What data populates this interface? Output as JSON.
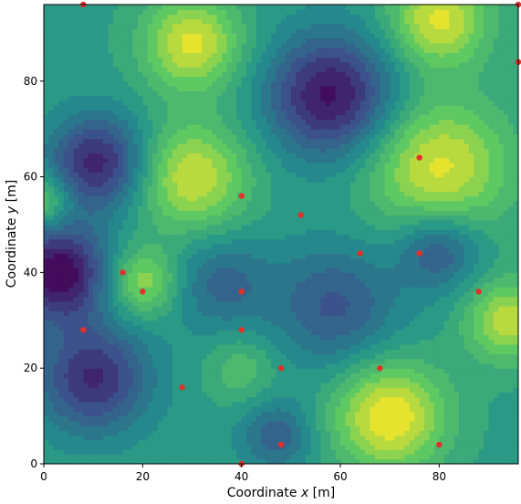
{
  "chart_data": {
    "type": "scatter",
    "subtype": "filled-contour-with-scatter",
    "xlabel_prefix": "Coordinate ",
    "xlabel_var": "x",
    "xlabel_suffix": " [m]",
    "ylabel_prefix": "Coordinate ",
    "ylabel_var": "y",
    "ylabel_suffix": " [m]",
    "xlim": [
      0,
      96
    ],
    "ylim": [
      0,
      96
    ],
    "xticks": [
      0,
      20,
      40,
      60,
      80
    ],
    "yticks": [
      0,
      20,
      40,
      60,
      80
    ],
    "grid": false,
    "colormap": [
      "#440154",
      "#3b528b",
      "#21918c",
      "#5ec962",
      "#fde725"
    ],
    "contour_levels": 14,
    "marker_color": "#e0302a",
    "field_base": 0.55,
    "field_features": [
      {
        "x": 3,
        "y": 40,
        "amp": -0.55,
        "r": 7
      },
      {
        "x": 58,
        "y": 77,
        "amp": -0.5,
        "r": 9
      },
      {
        "x": 11,
        "y": 63,
        "amp": -0.45,
        "r": 7
      },
      {
        "x": 10,
        "y": 18,
        "amp": -0.42,
        "r": 8
      },
      {
        "x": 59,
        "y": 33,
        "amp": -0.28,
        "r": 9
      },
      {
        "x": 36,
        "y": 38,
        "amp": -0.22,
        "r": 7
      },
      {
        "x": 80,
        "y": 45,
        "amp": -0.3,
        "r": 6
      },
      {
        "x": 47,
        "y": 6,
        "amp": -0.25,
        "r": 5
      },
      {
        "x": 30,
        "y": 88,
        "amp": 0.4,
        "r": 7
      },
      {
        "x": 80,
        "y": 93,
        "amp": 0.4,
        "r": 7
      },
      {
        "x": 30,
        "y": 60,
        "amp": 0.38,
        "r": 8
      },
      {
        "x": 80,
        "y": 62,
        "amp": 0.4,
        "r": 10
      },
      {
        "x": 94,
        "y": 30,
        "amp": 0.35,
        "r": 6
      },
      {
        "x": 70,
        "y": 10,
        "amp": 0.45,
        "r": 8
      },
      {
        "x": 20,
        "y": 38,
        "amp": 0.3,
        "r": 5
      },
      {
        "x": 40,
        "y": 20,
        "amp": 0.15,
        "r": 5
      },
      {
        "x": 0,
        "y": 55,
        "amp": 0.25,
        "r": 4
      }
    ],
    "points": [
      {
        "x": 8,
        "y": 96
      },
      {
        "x": 96,
        "y": 96
      },
      {
        "x": 96,
        "y": 84
      },
      {
        "x": 76,
        "y": 64
      },
      {
        "x": 40,
        "y": 56
      },
      {
        "x": 52,
        "y": 52
      },
      {
        "x": 64,
        "y": 44
      },
      {
        "x": 76,
        "y": 44
      },
      {
        "x": 16,
        "y": 40
      },
      {
        "x": 20,
        "y": 36
      },
      {
        "x": 40,
        "y": 36
      },
      {
        "x": 88,
        "y": 36
      },
      {
        "x": 8,
        "y": 28
      },
      {
        "x": 40,
        "y": 28
      },
      {
        "x": 48,
        "y": 20
      },
      {
        "x": 68,
        "y": 20
      },
      {
        "x": 28,
        "y": 16
      },
      {
        "x": 48,
        "y": 4
      },
      {
        "x": 80,
        "y": 4
      },
      {
        "x": 40,
        "y": 0
      }
    ]
  }
}
